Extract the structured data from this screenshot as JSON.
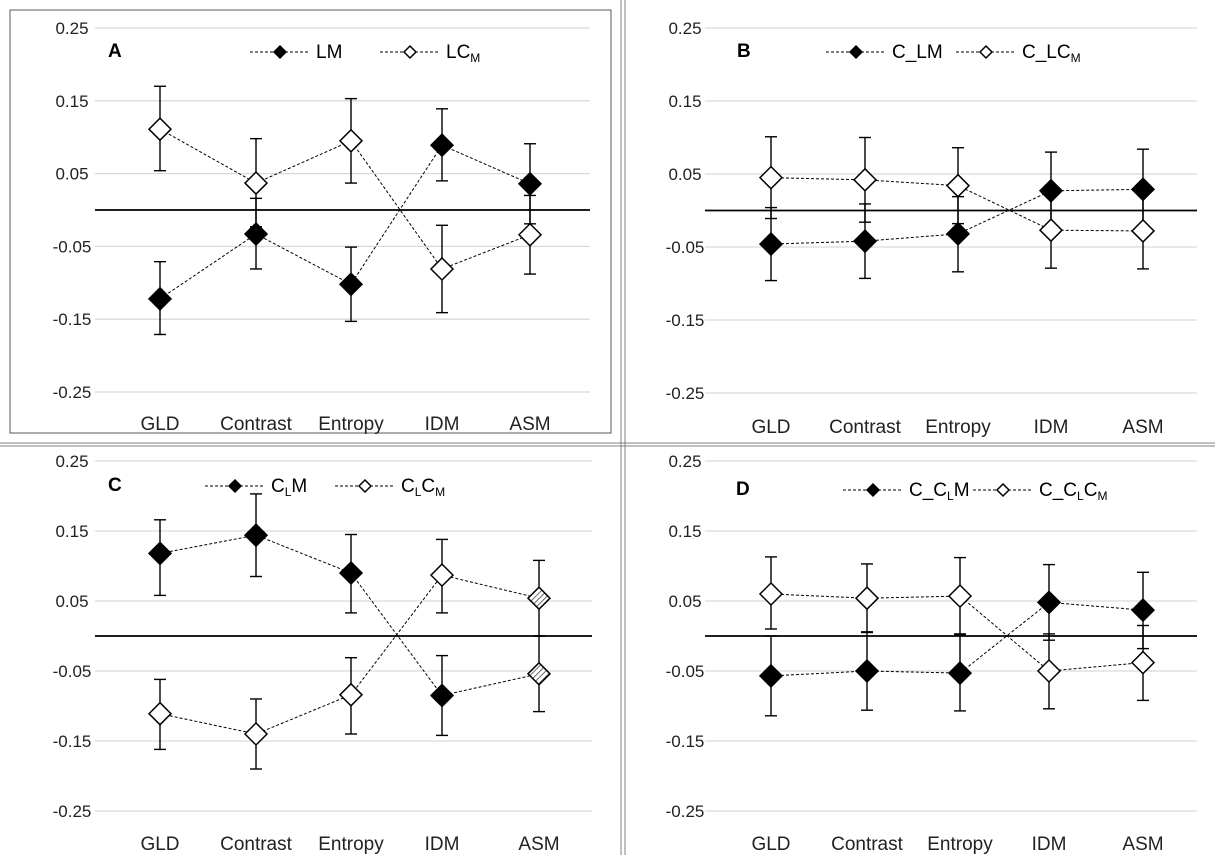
{
  "figure": {
    "colors": {
      "filled": "#000000",
      "open": "#ffffff",
      "hatched": "#a6a6a6",
      "grid": "#d9d9d9"
    }
  },
  "chart_data": [
    {
      "panel": "A",
      "type": "line",
      "categories": [
        "GLD",
        "Contrast",
        "Entropy",
        "IDM",
        "ASM"
      ],
      "ylim": [
        -0.25,
        0.25
      ],
      "yticks": [
        "0.25",
        "0.15",
        "0.05",
        "-0.05",
        "-0.15",
        "-0.25"
      ],
      "grid": true,
      "legend_position": "top-center",
      "series": [
        {
          "name_main": "LM",
          "name_sub": "",
          "name_tail": "",
          "marker": "filled-diamond",
          "values": [
            -0.122,
            -0.033,
            -0.102,
            0.089,
            0.036
          ],
          "err_low": [
            -0.171,
            -0.081,
            -0.153,
            0.04,
            -0.019
          ],
          "err_high": [
            -0.071,
            0.016,
            -0.051,
            0.139,
            0.091
          ]
        },
        {
          "name_main": "LC",
          "name_sub": "M",
          "name_tail": "",
          "marker": "open-diamond",
          "values": [
            0.111,
            0.037,
            0.095,
            -0.081,
            -0.034
          ],
          "err_low": [
            0.054,
            -0.023,
            0.037,
            -0.141,
            -0.088
          ],
          "err_high": [
            0.17,
            0.098,
            0.153,
            -0.021,
            0.02
          ]
        }
      ]
    },
    {
      "panel": "B",
      "type": "line",
      "categories": [
        "GLD",
        "Contrast",
        "Entropy",
        "IDM",
        "ASM"
      ],
      "ylim": [
        -0.25,
        0.25
      ],
      "yticks": [
        "0.25",
        "0.15",
        "0.05",
        "-0.05",
        "-0.15",
        "-0.25"
      ],
      "grid": true,
      "legend_position": "top-center",
      "series": [
        {
          "name_main": "C_LM",
          "name_sub": "",
          "name_tail": "",
          "marker": "filled-diamond",
          "values": [
            -0.046,
            -0.042,
            -0.032,
            0.027,
            0.029
          ],
          "err_low": [
            -0.096,
            -0.093,
            -0.084,
            -0.026,
            -0.025
          ],
          "err_high": [
            0.004,
            0.009,
            0.019,
            0.08,
            0.084
          ]
        },
        {
          "name_main": "C_LC",
          "name_sub": "M",
          "name_tail": "",
          "marker": "open-diamond",
          "values": [
            0.045,
            0.042,
            0.034,
            -0.027,
            -0.028
          ],
          "err_low": [
            -0.011,
            -0.016,
            -0.018,
            -0.079,
            -0.08
          ],
          "err_high": [
            0.101,
            0.1,
            0.086,
            0.025,
            0.024
          ]
        }
      ]
    },
    {
      "panel": "C",
      "type": "line",
      "categories": [
        "GLD",
        "Contrast",
        "Entropy",
        "IDM",
        "ASM"
      ],
      "ylim": [
        -0.25,
        0.25
      ],
      "yticks": [
        "0.25",
        "0.15",
        "0.05",
        "-0.05",
        "-0.15",
        "-0.25"
      ],
      "grid": true,
      "legend_position": "top-center",
      "series": [
        {
          "name_main": "C",
          "name_sub": "L",
          "name_tail": "M",
          "marker": "filled-diamond",
          "values": [
            0.118,
            0.144,
            0.09,
            -0.085,
            -0.054
          ],
          "err_low": [
            0.058,
            0.085,
            0.033,
            -0.142,
            -0.108
          ],
          "err_high": [
            0.166,
            0.203,
            0.145,
            -0.028,
            0.0
          ],
          "hatched_points": [
            4
          ]
        },
        {
          "name_main": "C",
          "name_sub": "L",
          "name_tail": "C",
          "name_tail_sub": "M",
          "marker": "open-diamond",
          "values": [
            -0.111,
            -0.14,
            -0.084,
            0.087,
            0.054
          ],
          "err_low": [
            -0.162,
            -0.19,
            -0.14,
            0.033,
            0.0
          ],
          "err_high": [
            -0.062,
            -0.09,
            -0.031,
            0.138,
            0.108
          ],
          "hatched_points": [
            4
          ]
        }
      ]
    },
    {
      "panel": "D",
      "type": "line",
      "categories": [
        "GLD",
        "Contrast",
        "Entropy",
        "IDM",
        "ASM"
      ],
      "ylim": [
        -0.25,
        0.25
      ],
      "yticks": [
        "0.25",
        "0.15",
        "0.05",
        "-0.05",
        "-0.15",
        "-0.25"
      ],
      "grid": true,
      "legend_position": "top-center",
      "series": [
        {
          "name_main": "C_C",
          "name_sub": "L",
          "name_tail": "M",
          "marker": "filled-diamond",
          "values": [
            -0.057,
            -0.05,
            -0.053,
            0.048,
            0.037
          ],
          "err_low": [
            -0.114,
            -0.106,
            -0.107,
            -0.006,
            -0.018
          ],
          "err_high": [
            0.0,
            0.006,
            0.002,
            0.102,
            0.091
          ]
        },
        {
          "name_main": "C_C",
          "name_sub": "L",
          "name_tail": "C",
          "name_tail_sub": "M",
          "marker": "open-diamond",
          "values": [
            0.06,
            0.054,
            0.057,
            -0.05,
            -0.038
          ],
          "err_low": [
            0.01,
            0.005,
            0.003,
            -0.104,
            -0.092
          ],
          "err_high": [
            0.113,
            0.103,
            0.112,
            0.003,
            0.015
          ]
        }
      ]
    }
  ]
}
